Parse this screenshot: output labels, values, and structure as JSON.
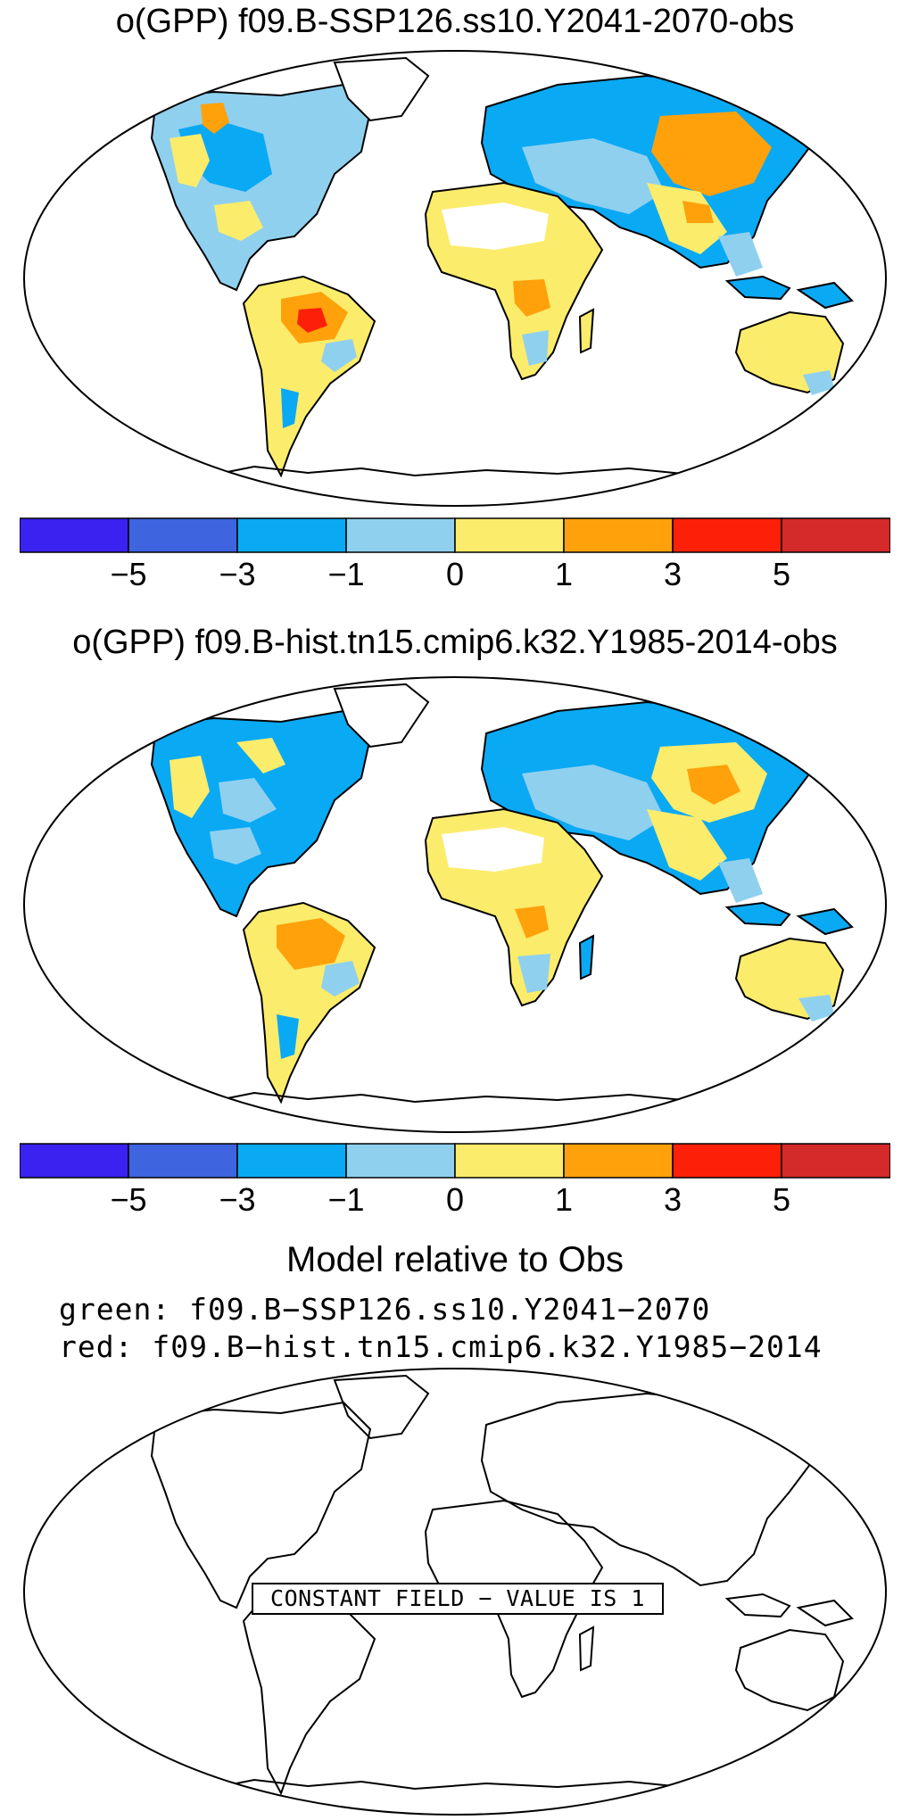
{
  "panels": [
    {
      "title": "o(GPP) f09.B-SSP126.ss10.Y2041-2070-obs"
    },
    {
      "title": "o(GPP) f09.B-hist.tn15.cmip6.k32.Y1985-2014-obs"
    }
  ],
  "colorbar": {
    "colors": [
      "#3a22f0",
      "#3e64e0",
      "#0aa9f4",
      "#8fd0ef",
      "#fbec6b",
      "#fea10b",
      "#fd2008",
      "#d42a2a"
    ],
    "ticks": [
      "−5",
      "−3",
      "−1",
      "0",
      "1",
      "3",
      "5"
    ]
  },
  "comparison": {
    "heading": "Model relative to Obs",
    "green_line": "green: f09.B−SSP126.ss10.Y2041−2070",
    "red_line": "red: f09.B−hist.tn15.cmip6.k32.Y1985−2014",
    "constant_label": "CONSTANT FIELD − VALUE IS 1"
  }
}
